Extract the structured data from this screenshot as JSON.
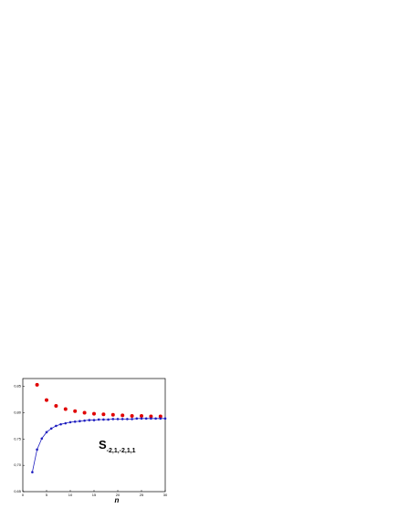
{
  "chart_data": {
    "type": "line",
    "xlabel": "n",
    "annotation": {
      "text": "S",
      "subscript": "-2,1,-2,1,1"
    },
    "xlim": [
      0,
      30
    ],
    "xticks": [
      0,
      5,
      10,
      15,
      20,
      25,
      30
    ],
    "ylim": [
      0.65,
      0.865
    ],
    "yticks": [
      {
        "value": 0.65,
        "label": "0,65"
      },
      {
        "value": 0.7,
        "label": "0,70"
      },
      {
        "value": 0.75,
        "label": "0,75"
      },
      {
        "value": 0.8,
        "label": "0,80"
      },
      {
        "value": 0.85,
        "label": "0,85"
      }
    ],
    "series": [
      {
        "color": "#e00000",
        "mode": "markers",
        "x": [
          3,
          5,
          7,
          9,
          11,
          13,
          15,
          17,
          19,
          21,
          23,
          25,
          27,
          29
        ],
        "values": [
          0.853,
          0.824,
          0.813,
          0.807,
          0.803,
          0.8,
          0.798,
          0.797,
          0.796,
          0.795,
          0.794,
          0.794,
          0.793,
          0.793
        ]
      },
      {
        "color": "#2020c0",
        "mode": "line-markers",
        "x": [
          2,
          3,
          4,
          5,
          6,
          7,
          8,
          9,
          10,
          11,
          12,
          13,
          14,
          15,
          16,
          17,
          18,
          19,
          20,
          21,
          22,
          23,
          24,
          25,
          26,
          27,
          28,
          29,
          30
        ],
        "values": [
          0.687,
          0.73,
          0.751,
          0.763,
          0.77,
          0.775,
          0.778,
          0.78,
          0.782,
          0.783,
          0.784,
          0.785,
          0.786,
          0.786,
          0.787,
          0.787,
          0.787,
          0.788,
          0.788,
          0.788,
          0.788,
          0.788,
          0.789,
          0.789,
          0.789,
          0.789,
          0.789,
          0.789,
          0.789
        ]
      }
    ]
  }
}
